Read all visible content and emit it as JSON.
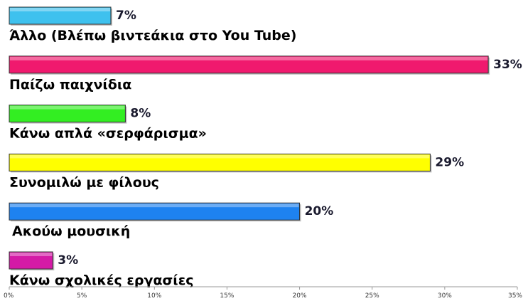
{
  "chart_data": {
    "type": "bar",
    "orientation": "horizontal",
    "categories": [
      "Άλλο (Βλέπω βιντεάκια στο You Tube)",
      "Παίζω παιχνίδια",
      "Κάνω απλά «σερφάρισμα»",
      "Συνομιλώ με φίλους",
      "Ακούω μουσική",
      "Κάνω σχολικές εργασίες"
    ],
    "values": [
      7,
      33,
      8,
      29,
      20,
      3
    ],
    "value_labels": [
      "7%",
      "33%",
      "8%",
      "29%",
      "20%",
      "3%"
    ],
    "colors": [
      "#3ec1ee",
      "#f0196e",
      "#33ee22",
      "#ffff00",
      "#1e82f0",
      "#d41aa6"
    ],
    "xlim": [
      0,
      35
    ],
    "xticks": [
      0,
      5,
      10,
      15,
      20,
      25,
      30,
      35
    ],
    "xtick_labels": [
      "0%",
      "5%",
      "10%",
      "15%",
      "20%",
      "25%",
      "30%",
      "35%"
    ],
    "title": "",
    "xlabel": "",
    "ylabel": "",
    "grid": false,
    "legend": false
  }
}
